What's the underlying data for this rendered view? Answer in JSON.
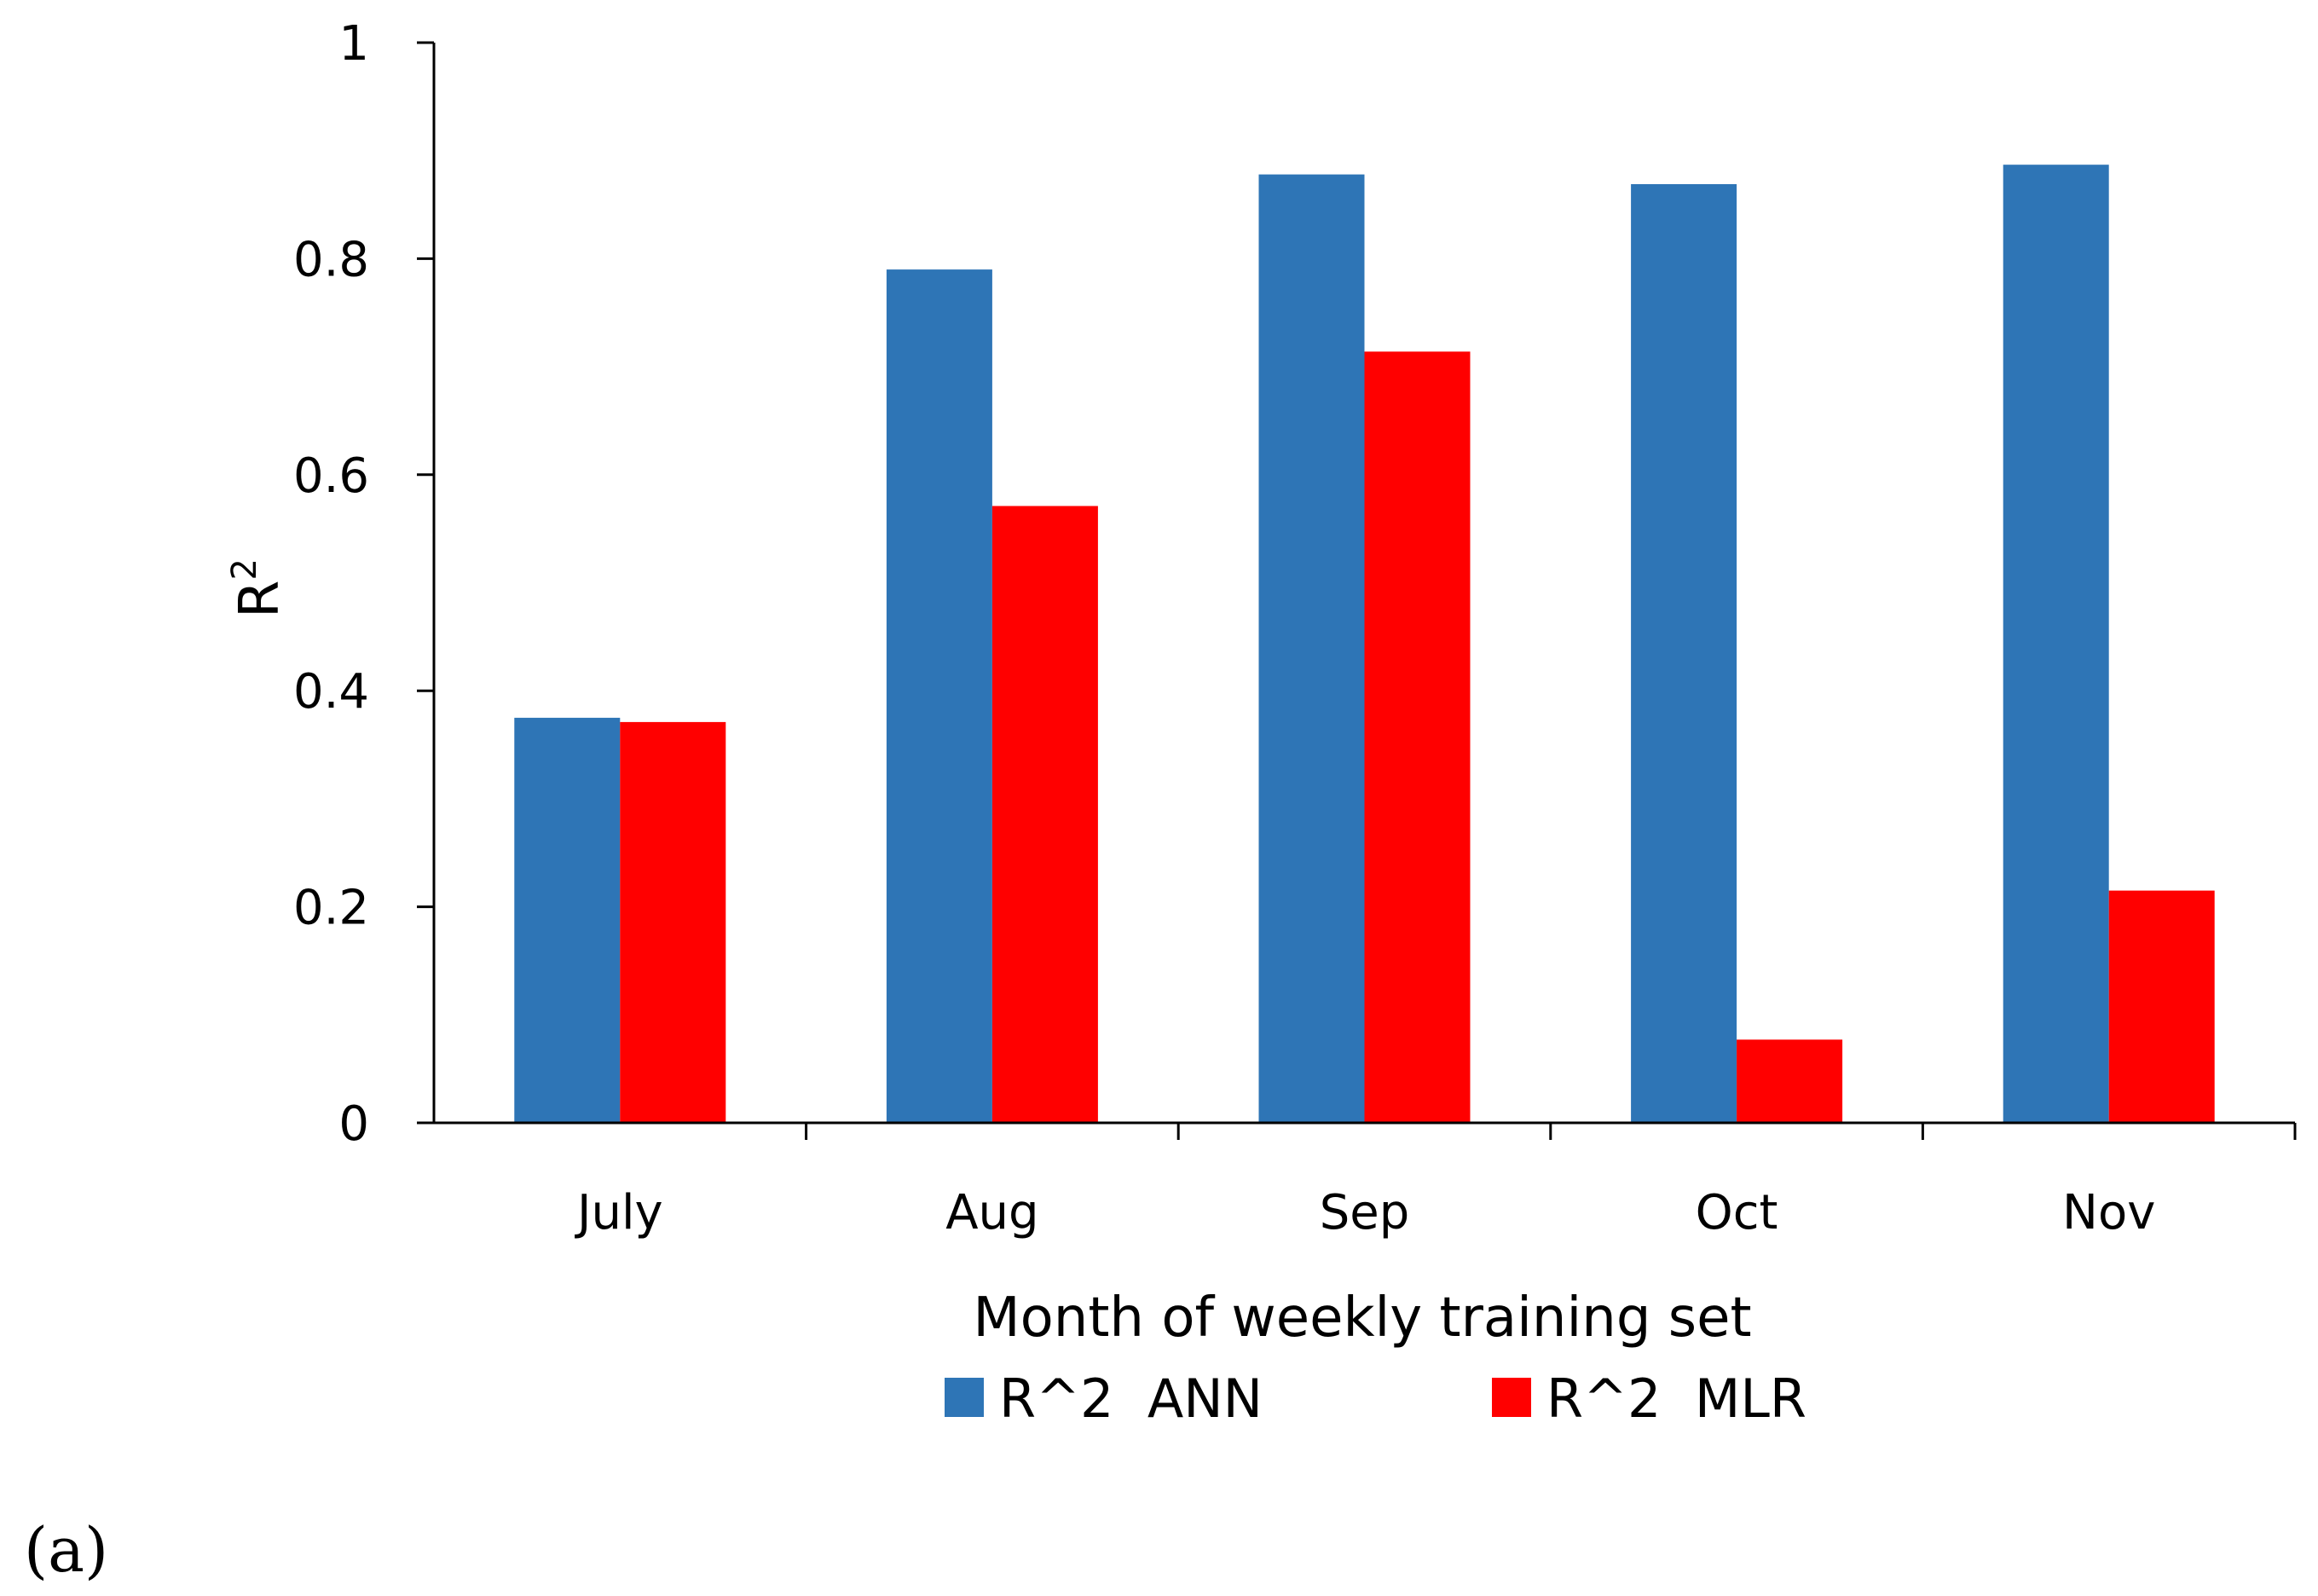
{
  "chart_data": {
    "type": "bar",
    "title": "",
    "xlabel": "Month of weekly training set",
    "ylabel_base": "R",
    "ylabel_sup": "2",
    "categories": [
      "July",
      "Aug",
      "Sep",
      "Oct",
      "Nov"
    ],
    "series": [
      {
        "name": "R^2  ANN",
        "color": "#2e75b6",
        "values": [
          0.375,
          0.79,
          0.878,
          0.869,
          0.887
        ]
      },
      {
        "name": "R^2  MLR",
        "color": "#ff0000",
        "values": [
          0.371,
          0.571,
          0.714,
          0.077,
          0.215
        ]
      }
    ],
    "ylim": [
      0,
      1
    ],
    "yticks": [
      0,
      0.2,
      0.4,
      0.6,
      0.8,
      1
    ],
    "ytick_labels": [
      "0",
      "0.2",
      "0.4",
      "0.6",
      "0.8",
      "1"
    ],
    "grid": false,
    "legend_position": "bottom"
  },
  "panel_label": "(a)"
}
